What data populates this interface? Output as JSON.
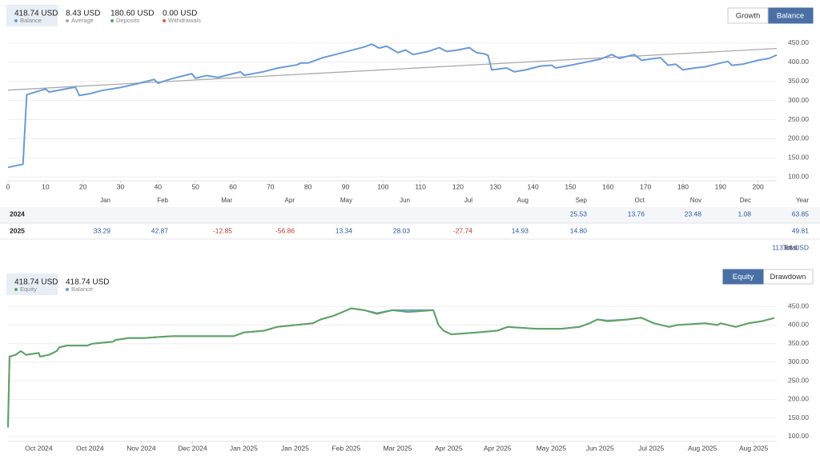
{
  "chart_data": [
    {
      "type": "line",
      "stats": [
        {
          "value": "418.74 USD",
          "label": "Balance",
          "color": "#6a9bd8"
        },
        {
          "value": "8.43 USD",
          "label": "Average",
          "color": "#aaaaaa"
        },
        {
          "value": "180.60 USD",
          "label": "Deposits",
          "color": "#5fa35f"
        },
        {
          "value": "0.00 USD",
          "label": "Withdrawals",
          "color": "#e05a4a"
        }
      ],
      "buttons": [
        "Growth",
        "Balance"
      ],
      "active_button": 1,
      "xlim": [
        0,
        205
      ],
      "xticks": [
        0,
        10,
        20,
        30,
        40,
        50,
        60,
        70,
        80,
        90,
        100,
        110,
        120,
        130,
        140,
        150,
        160,
        170,
        180,
        190,
        200
      ],
      "ylim": [
        90,
        500
      ],
      "yticks": [
        {
          "value": 100,
          "label": "100.00"
        },
        {
          "value": 150,
          "label": "150.00"
        },
        {
          "value": 200,
          "label": "200.00"
        },
        {
          "value": 250,
          "label": "250.00"
        },
        {
          "value": 300,
          "label": "300.00"
        },
        {
          "value": 350,
          "label": "350.00"
        },
        {
          "value": 400,
          "label": "400.00"
        },
        {
          "value": 450,
          "label": "450.00"
        }
      ],
      "grid": true,
      "series": [
        {
          "color": "#aaaaaa",
          "x": [
            0,
            205
          ],
          "values": [
            327,
            436
          ]
        },
        {
          "color": "#6a9bd8",
          "x": [
            0,
            4,
            5,
            10,
            11,
            18,
            19,
            22,
            25,
            30,
            35,
            39,
            40,
            43,
            47,
            49,
            50,
            53,
            56,
            60,
            62,
            63,
            68,
            72,
            77,
            78,
            80,
            84,
            88,
            95,
            97,
            99,
            101,
            104,
            106,
            108,
            112,
            115,
            117,
            120,
            123,
            125,
            127,
            128,
            129,
            133,
            135,
            138,
            142,
            145,
            146,
            150,
            155,
            158,
            161,
            163,
            167,
            169,
            171,
            174,
            176,
            178,
            180,
            183,
            186,
            190,
            192,
            193,
            196,
            200,
            203,
            205
          ],
          "values": [
            125,
            133,
            315,
            330,
            322,
            335,
            313,
            318,
            326,
            334,
            345,
            355,
            345,
            355,
            365,
            370,
            358,
            365,
            360,
            370,
            375,
            366,
            375,
            385,
            393,
            398,
            398,
            412,
            422,
            440,
            447,
            437,
            442,
            425,
            432,
            420,
            428,
            438,
            428,
            432,
            438,
            425,
            422,
            418,
            380,
            385,
            375,
            380,
            390,
            392,
            385,
            392,
            402,
            408,
            420,
            410,
            420,
            405,
            408,
            412,
            392,
            395,
            380,
            385,
            388,
            398,
            402,
            392,
            395,
            405,
            410,
            419
          ]
        }
      ]
    },
    {
      "type": "line",
      "stats": [
        {
          "value": "418.74 USD",
          "label": "Equity",
          "color": "#5fa35f"
        },
        {
          "value": "418.74 USD",
          "label": "Balance",
          "color": "#6a9bd8"
        }
      ],
      "buttons": [
        "Equity",
        "Drawdown"
      ],
      "active_button": 0,
      "xlim": [
        0,
        300
      ],
      "xticks": [
        {
          "value": 12,
          "label": "Oct 2024"
        },
        {
          "value": 32,
          "label": "Oct 2024"
        },
        {
          "value": 52,
          "label": "Nov 2024"
        },
        {
          "value": 72,
          "label": "Dec 2024"
        },
        {
          "value": 92,
          "label": "Jan 2025"
        },
        {
          "value": 112,
          "label": "Jan 2025"
        },
        {
          "value": 132,
          "label": "Feb 2025"
        },
        {
          "value": 152,
          "label": "Mar 2025"
        },
        {
          "value": 172,
          "label": "Apr 2025"
        },
        {
          "value": 191,
          "label": "Apr 2025"
        },
        {
          "value": 212,
          "label": "May 2025"
        },
        {
          "value": 231,
          "label": "Jun 2025"
        },
        {
          "value": 251,
          "label": "Jul 2025"
        },
        {
          "value": 271,
          "label": "Aug 2025"
        },
        {
          "value": 291,
          "label": "Aug 2025"
        }
      ],
      "ylim": [
        87,
        500
      ],
      "yticks": [
        {
          "value": 100,
          "label": "100.00"
        },
        {
          "value": 150,
          "label": "150.00"
        },
        {
          "value": 200,
          "label": "200.00"
        },
        {
          "value": 250,
          "label": "250.00"
        },
        {
          "value": 300,
          "label": "300.00"
        },
        {
          "value": 350,
          "label": "350.00"
        },
        {
          "value": 400,
          "label": "400.00"
        },
        {
          "value": 450,
          "label": "450.00"
        }
      ],
      "grid": true,
      "series": [
        {
          "color": "#6a9bd8",
          "x": [
            0,
            0.6,
            3,
            5,
            7,
            12,
            12.5,
            16,
            19,
            20,
            23,
            31,
            33,
            41,
            42,
            47,
            53,
            59,
            64,
            88,
            92,
            100,
            105,
            112,
            119,
            122,
            127,
            134,
            139,
            144,
            150,
            156,
            166,
            168,
            170,
            173,
            183,
            191,
            195,
            206,
            216,
            223,
            227,
            230,
            234,
            242,
            247,
            252,
            258,
            261,
            272,
            277,
            278,
            284,
            289,
            294,
            299
          ],
          "values": [
            125,
            315,
            320,
            330,
            320,
            325,
            315,
            320,
            330,
            340,
            345,
            345,
            350,
            355,
            360,
            365,
            365,
            368,
            370,
            370,
            380,
            385,
            395,
            400,
            405,
            415,
            425,
            445,
            440,
            432,
            440,
            440,
            440,
            400,
            385,
            375,
            380,
            385,
            395,
            390,
            390,
            395,
            405,
            415,
            412,
            415,
            420,
            405,
            395,
            400,
            405,
            400,
            405,
            395,
            405,
            410,
            419
          ]
        },
        {
          "color": "#5fa35f",
          "x": [
            0,
            0.6,
            3,
            5,
            7,
            12,
            12.5,
            16,
            19,
            20,
            23,
            31,
            33,
            41,
            42,
            47,
            53,
            59,
            64,
            88,
            92,
            100,
            105,
            112,
            119,
            122,
            127,
            134,
            139,
            144,
            150,
            156,
            166,
            168,
            170,
            173,
            183,
            191,
            195,
            206,
            216,
            223,
            227,
            230,
            234,
            242,
            247,
            252,
            258,
            261,
            272,
            277,
            278,
            284,
            289,
            294,
            299
          ],
          "values": [
            125,
            315,
            320,
            330,
            320,
            325,
            315,
            320,
            330,
            340,
            345,
            345,
            350,
            355,
            360,
            365,
            365,
            368,
            370,
            370,
            380,
            385,
            395,
            400,
            405,
            415,
            425,
            445,
            440,
            430,
            440,
            435,
            440,
            400,
            385,
            375,
            380,
            385,
            395,
            390,
            390,
            395,
            405,
            415,
            410,
            415,
            420,
            405,
            395,
            400,
            405,
            400,
            405,
            395,
            405,
            410,
            419
          ]
        }
      ]
    }
  ],
  "table": {
    "header": [
      null,
      "Jan",
      "Feb",
      "Mar",
      "Apr",
      "May",
      "Jun",
      "Jul",
      "Aug",
      "Sep",
      "Oct",
      "Nov",
      "Dec",
      "Year"
    ],
    "rows": [
      [
        "2024",
        null,
        null,
        null,
        null,
        null,
        null,
        null,
        null,
        "25.53",
        "13.76",
        "23.48",
        "1.08",
        "63.85"
      ],
      [
        "2025",
        "33.29",
        "42.87",
        "-12.85",
        "-56.86",
        "13.34",
        "28.03",
        "-27.74",
        "14.93",
        "14.80",
        null,
        null,
        null,
        "49.81"
      ]
    ],
    "total_label": "Total:",
    "total": "113.66 USD"
  }
}
